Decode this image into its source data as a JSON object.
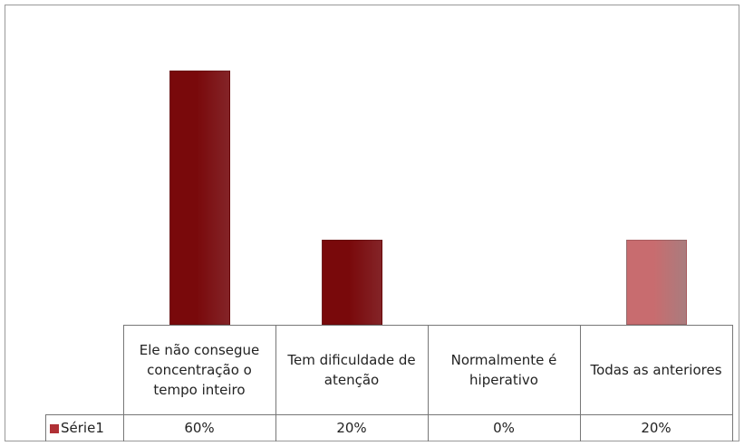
{
  "chart_data": {
    "type": "bar",
    "categories": [
      "Ele não consegue concentração o tempo inteiro",
      "Tem dificuldade de atenção",
      "Normalmente é hiperativo",
      "Todas as anteriores"
    ],
    "series": [
      {
        "name": "Série1",
        "color": "#b03035",
        "bar_colors": [
          "#b03035",
          "#b03035",
          "#b03035",
          "#e2a6a8"
        ],
        "values": [
          60,
          20,
          0,
          20
        ],
        "value_labels": [
          "60%",
          "20%",
          "0%",
          "20%"
        ]
      }
    ],
    "data_table": true
  }
}
